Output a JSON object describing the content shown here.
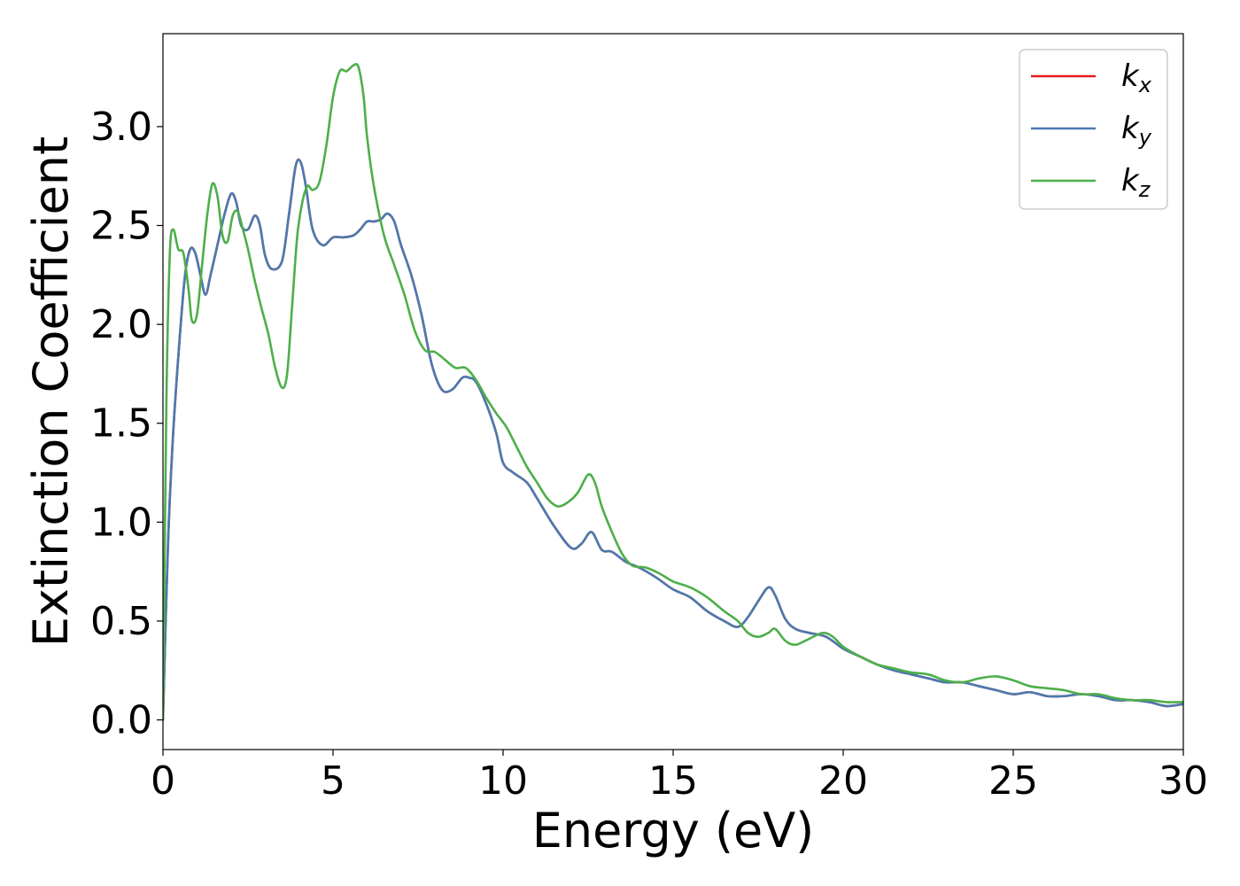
{
  "chart_data": {
    "type": "line",
    "title": "",
    "xlabel": "Energy (eV)",
    "ylabel": "Extinction Coefficient",
    "xlim": [
      0,
      30
    ],
    "ylim": [
      -0.15,
      3.47
    ],
    "xticks": [
      0,
      5,
      10,
      15,
      20,
      25,
      30
    ],
    "xtick_labels": [
      "0",
      "5",
      "10",
      "15",
      "20",
      "25",
      "30"
    ],
    "yticks": [
      0.0,
      0.5,
      1.0,
      1.5,
      2.0,
      2.5,
      3.0
    ],
    "ytick_labels": [
      "0.0",
      "0.5",
      "1.0",
      "1.5",
      "2.0",
      "2.5",
      "3.0"
    ],
    "grid": false,
    "legend_position": "top-right",
    "series": [
      {
        "name": "k",
        "subscript": "x",
        "color": "#e41a1c",
        "x": [
          0,
          0.15,
          0.3,
          0.5,
          0.65,
          0.8,
          0.95,
          1.1,
          1.25,
          1.4,
          1.6,
          1.8,
          2.0,
          2.15,
          2.3,
          2.5,
          2.7,
          2.85,
          3.0,
          3.2,
          3.5,
          3.7,
          3.9,
          4.05,
          4.2,
          4.4,
          4.7,
          5.0,
          5.3,
          5.6,
          5.8,
          6.0,
          6.2,
          6.4,
          6.6,
          6.8,
          7.0,
          7.3,
          7.6,
          7.9,
          8.2,
          8.5,
          8.8,
          9.0,
          9.2,
          9.5,
          9.8,
          10.0,
          10.3,
          10.7,
          11.0,
          11.5,
          12.0,
          12.3,
          12.6,
          12.9,
          13.2,
          13.6,
          14.0,
          14.5,
          15.0,
          15.5,
          16.0,
          16.5,
          16.9,
          17.2,
          17.5,
          17.8,
          18.0,
          18.3,
          18.6,
          19.0,
          19.5,
          20.0,
          20.5,
          21.0,
          21.5,
          22.0,
          22.5,
          23.0,
          23.5,
          24.0,
          24.5,
          25.0,
          25.5,
          26.0,
          26.5,
          27.0,
          27.5,
          28.0,
          28.5,
          29.0,
          29.5,
          30.0
        ],
        "y": [
          0.0,
          0.9,
          1.45,
          1.95,
          2.25,
          2.38,
          2.36,
          2.25,
          2.15,
          2.25,
          2.4,
          2.55,
          2.66,
          2.62,
          2.5,
          2.48,
          2.55,
          2.5,
          2.35,
          2.28,
          2.32,
          2.55,
          2.8,
          2.82,
          2.7,
          2.48,
          2.4,
          2.44,
          2.44,
          2.45,
          2.48,
          2.52,
          2.52,
          2.53,
          2.56,
          2.52,
          2.4,
          2.25,
          2.05,
          1.8,
          1.67,
          1.67,
          1.73,
          1.73,
          1.71,
          1.6,
          1.45,
          1.3,
          1.25,
          1.2,
          1.12,
          0.98,
          0.87,
          0.89,
          0.95,
          0.86,
          0.85,
          0.8,
          0.77,
          0.72,
          0.66,
          0.62,
          0.55,
          0.5,
          0.47,
          0.52,
          0.6,
          0.67,
          0.63,
          0.51,
          0.46,
          0.44,
          0.42,
          0.36,
          0.32,
          0.28,
          0.25,
          0.23,
          0.21,
          0.19,
          0.19,
          0.17,
          0.15,
          0.13,
          0.14,
          0.12,
          0.12,
          0.13,
          0.12,
          0.1,
          0.1,
          0.09,
          0.07,
          0.08
        ]
      },
      {
        "name": "k",
        "subscript": "y",
        "color": "#4a7ab0",
        "x": [
          0,
          0.15,
          0.3,
          0.5,
          0.65,
          0.8,
          0.95,
          1.1,
          1.25,
          1.4,
          1.6,
          1.8,
          2.0,
          2.15,
          2.3,
          2.5,
          2.7,
          2.85,
          3.0,
          3.2,
          3.5,
          3.7,
          3.9,
          4.05,
          4.2,
          4.4,
          4.7,
          5.0,
          5.3,
          5.6,
          5.8,
          6.0,
          6.2,
          6.4,
          6.6,
          6.8,
          7.0,
          7.3,
          7.6,
          7.9,
          8.2,
          8.5,
          8.8,
          9.0,
          9.2,
          9.5,
          9.8,
          10.0,
          10.3,
          10.7,
          11.0,
          11.5,
          12.0,
          12.3,
          12.6,
          12.9,
          13.2,
          13.6,
          14.0,
          14.5,
          15.0,
          15.5,
          16.0,
          16.5,
          16.9,
          17.2,
          17.5,
          17.8,
          18.0,
          18.3,
          18.6,
          19.0,
          19.5,
          20.0,
          20.5,
          21.0,
          21.5,
          22.0,
          22.5,
          23.0,
          23.5,
          24.0,
          24.5,
          25.0,
          25.5,
          26.0,
          26.5,
          27.0,
          27.5,
          28.0,
          28.5,
          29.0,
          29.5,
          30.0
        ],
        "y": [
          0.0,
          0.9,
          1.45,
          1.95,
          2.25,
          2.38,
          2.36,
          2.25,
          2.15,
          2.25,
          2.4,
          2.55,
          2.66,
          2.62,
          2.5,
          2.48,
          2.55,
          2.5,
          2.35,
          2.28,
          2.32,
          2.55,
          2.8,
          2.82,
          2.7,
          2.48,
          2.4,
          2.44,
          2.44,
          2.45,
          2.48,
          2.52,
          2.52,
          2.53,
          2.56,
          2.52,
          2.4,
          2.25,
          2.05,
          1.8,
          1.67,
          1.67,
          1.73,
          1.73,
          1.71,
          1.6,
          1.45,
          1.3,
          1.25,
          1.2,
          1.12,
          0.98,
          0.87,
          0.89,
          0.95,
          0.86,
          0.85,
          0.8,
          0.77,
          0.72,
          0.66,
          0.62,
          0.55,
          0.5,
          0.47,
          0.52,
          0.6,
          0.67,
          0.63,
          0.51,
          0.46,
          0.44,
          0.42,
          0.36,
          0.32,
          0.28,
          0.25,
          0.23,
          0.21,
          0.19,
          0.19,
          0.17,
          0.15,
          0.13,
          0.14,
          0.12,
          0.12,
          0.13,
          0.12,
          0.1,
          0.1,
          0.09,
          0.07,
          0.08
        ]
      },
      {
        "name": "k",
        "subscript": "z",
        "color": "#4daf4a",
        "x": [
          0,
          0.1,
          0.2,
          0.3,
          0.45,
          0.6,
          0.75,
          0.85,
          1.0,
          1.15,
          1.3,
          1.45,
          1.6,
          1.75,
          1.9,
          2.05,
          2.2,
          2.35,
          2.5,
          2.7,
          2.9,
          3.1,
          3.3,
          3.5,
          3.65,
          3.8,
          3.95,
          4.1,
          4.25,
          4.4,
          4.6,
          4.8,
          5.0,
          5.2,
          5.4,
          5.6,
          5.75,
          5.9,
          6.0,
          6.2,
          6.5,
          6.8,
          7.1,
          7.4,
          7.7,
          8.0,
          8.3,
          8.6,
          8.9,
          9.2,
          9.5,
          9.8,
          10.1,
          10.4,
          10.7,
          11.0,
          11.3,
          11.6,
          11.9,
          12.2,
          12.5,
          12.7,
          12.9,
          13.2,
          13.5,
          13.8,
          14.2,
          14.6,
          15.0,
          15.5,
          16.0,
          16.5,
          16.9,
          17.2,
          17.5,
          17.8,
          18.0,
          18.3,
          18.6,
          19.0,
          19.4,
          19.7,
          20.0,
          20.5,
          21.0,
          21.5,
          22.0,
          22.5,
          23.0,
          23.5,
          24.0,
          24.5,
          25.0,
          25.5,
          26.0,
          26.5,
          27.0,
          27.5,
          28.0,
          28.5,
          29.0,
          29.5,
          30.0
        ],
        "y": [
          0.0,
          1.6,
          2.35,
          2.48,
          2.38,
          2.36,
          2.18,
          2.02,
          2.05,
          2.3,
          2.55,
          2.71,
          2.65,
          2.45,
          2.42,
          2.55,
          2.57,
          2.48,
          2.38,
          2.22,
          2.08,
          1.95,
          1.78,
          1.68,
          1.75,
          2.1,
          2.45,
          2.62,
          2.7,
          2.68,
          2.72,
          2.9,
          3.15,
          3.28,
          3.28,
          3.31,
          3.3,
          3.15,
          2.95,
          2.7,
          2.45,
          2.3,
          2.15,
          1.97,
          1.87,
          1.86,
          1.82,
          1.78,
          1.78,
          1.72,
          1.63,
          1.55,
          1.48,
          1.38,
          1.28,
          1.2,
          1.12,
          1.08,
          1.1,
          1.15,
          1.24,
          1.2,
          1.08,
          0.95,
          0.84,
          0.78,
          0.77,
          0.74,
          0.7,
          0.67,
          0.62,
          0.55,
          0.5,
          0.44,
          0.42,
          0.44,
          0.46,
          0.4,
          0.38,
          0.41,
          0.44,
          0.42,
          0.37,
          0.32,
          0.28,
          0.26,
          0.24,
          0.23,
          0.2,
          0.19,
          0.21,
          0.22,
          0.2,
          0.17,
          0.16,
          0.15,
          0.13,
          0.13,
          0.11,
          0.1,
          0.1,
          0.09,
          0.09
        ]
      }
    ]
  }
}
